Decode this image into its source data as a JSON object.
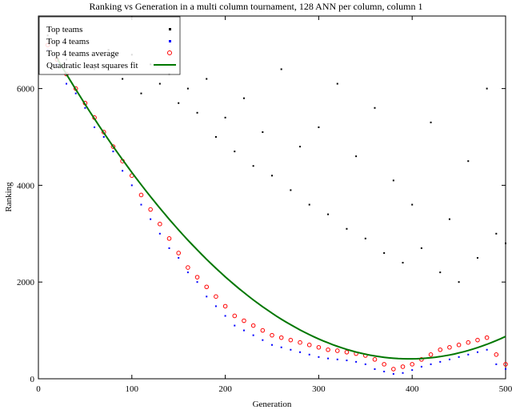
{
  "chart_data": {
    "type": "scatter",
    "title": "Ranking vs Generation in a multi column tournament, 128 ANN per column, column 1",
    "xlabel": "Generation",
    "ylabel": "Ranking",
    "xlim": [
      0,
      500
    ],
    "ylim": [
      0,
      7500
    ],
    "xticks": [
      0,
      100,
      200,
      300,
      400,
      500
    ],
    "yticks": [
      0,
      2000,
      4000,
      6000
    ],
    "grid": false,
    "legend_position": "top-left",
    "series": [
      {
        "name": "Top teams",
        "marker": "dot",
        "color": "#000000",
        "points": [
          [
            10,
            7100
          ],
          [
            20,
            6900
          ],
          [
            30,
            6600
          ],
          [
            45,
            7200
          ],
          [
            60,
            6400
          ],
          [
            75,
            6800
          ],
          [
            90,
            6200
          ],
          [
            100,
            6700
          ],
          [
            110,
            5900
          ],
          [
            120,
            6500
          ],
          [
            130,
            6100
          ],
          [
            140,
            6300
          ],
          [
            150,
            5700
          ],
          [
            160,
            6000
          ],
          [
            170,
            5500
          ],
          [
            180,
            6200
          ],
          [
            190,
            5000
          ],
          [
            200,
            5400
          ],
          [
            210,
            4700
          ],
          [
            220,
            5800
          ],
          [
            230,
            4400
          ],
          [
            240,
            5100
          ],
          [
            250,
            4200
          ],
          [
            260,
            6400
          ],
          [
            270,
            3900
          ],
          [
            280,
            4800
          ],
          [
            290,
            3600
          ],
          [
            300,
            5200
          ],
          [
            310,
            3400
          ],
          [
            320,
            6100
          ],
          [
            330,
            3100
          ],
          [
            340,
            4600
          ],
          [
            350,
            2900
          ],
          [
            360,
            5600
          ],
          [
            370,
            2600
          ],
          [
            380,
            4100
          ],
          [
            390,
            2400
          ],
          [
            400,
            3600
          ],
          [
            410,
            2700
          ],
          [
            420,
            5300
          ],
          [
            430,
            2200
          ],
          [
            440,
            3300
          ],
          [
            450,
            2000
          ],
          [
            460,
            4500
          ],
          [
            470,
            2500
          ],
          [
            480,
            6000
          ],
          [
            490,
            3000
          ],
          [
            500,
            2800
          ]
        ]
      },
      {
        "name": "Top 4 teams",
        "marker": "dot",
        "color": "#0000ff",
        "points": [
          [
            10,
            6800
          ],
          [
            20,
            6500
          ],
          [
            30,
            6100
          ],
          [
            40,
            5900
          ],
          [
            50,
            5600
          ],
          [
            60,
            5200
          ],
          [
            70,
            5000
          ],
          [
            80,
            4700
          ],
          [
            90,
            4300
          ],
          [
            100,
            4000
          ],
          [
            110,
            3600
          ],
          [
            120,
            3300
          ],
          [
            130,
            3000
          ],
          [
            140,
            2700
          ],
          [
            150,
            2500
          ],
          [
            160,
            2200
          ],
          [
            170,
            2000
          ],
          [
            180,
            1700
          ],
          [
            190,
            1500
          ],
          [
            200,
            1300
          ],
          [
            210,
            1100
          ],
          [
            220,
            1000
          ],
          [
            230,
            900
          ],
          [
            240,
            800
          ],
          [
            250,
            700
          ],
          [
            260,
            650
          ],
          [
            270,
            600
          ],
          [
            280,
            550
          ],
          [
            290,
            500
          ],
          [
            300,
            450
          ],
          [
            310,
            420
          ],
          [
            320,
            400
          ],
          [
            330,
            380
          ],
          [
            340,
            350
          ],
          [
            350,
            300
          ],
          [
            360,
            200
          ],
          [
            370,
            150
          ],
          [
            380,
            100
          ],
          [
            390,
            120
          ],
          [
            400,
            180
          ],
          [
            410,
            250
          ],
          [
            420,
            300
          ],
          [
            430,
            350
          ],
          [
            440,
            400
          ],
          [
            450,
            450
          ],
          [
            460,
            500
          ],
          [
            470,
            550
          ],
          [
            480,
            600
          ],
          [
            490,
            300
          ],
          [
            500,
            200
          ]
        ]
      },
      {
        "name": "Top 4 teams average",
        "marker": "circle",
        "color": "#ff0000",
        "points": [
          [
            10,
            6900
          ],
          [
            20,
            6600
          ],
          [
            30,
            6300
          ],
          [
            40,
            6000
          ],
          [
            50,
            5700
          ],
          [
            60,
            5400
          ],
          [
            70,
            5100
          ],
          [
            80,
            4800
          ],
          [
            90,
            4500
          ],
          [
            100,
            4200
          ],
          [
            110,
            3800
          ],
          [
            120,
            3500
          ],
          [
            130,
            3200
          ],
          [
            140,
            2900
          ],
          [
            150,
            2600
          ],
          [
            160,
            2300
          ],
          [
            170,
            2100
          ],
          [
            180,
            1900
          ],
          [
            190,
            1700
          ],
          [
            200,
            1500
          ],
          [
            210,
            1300
          ],
          [
            220,
            1200
          ],
          [
            230,
            1100
          ],
          [
            240,
            1000
          ],
          [
            250,
            900
          ],
          [
            260,
            850
          ],
          [
            270,
            800
          ],
          [
            280,
            750
          ],
          [
            290,
            700
          ],
          [
            300,
            650
          ],
          [
            310,
            600
          ],
          [
            320,
            580
          ],
          [
            330,
            550
          ],
          [
            340,
            520
          ],
          [
            350,
            480
          ],
          [
            360,
            400
          ],
          [
            370,
            300
          ],
          [
            380,
            200
          ],
          [
            390,
            250
          ],
          [
            400,
            300
          ],
          [
            410,
            400
          ],
          [
            420,
            500
          ],
          [
            430,
            600
          ],
          [
            440,
            650
          ],
          [
            450,
            700
          ],
          [
            460,
            750
          ],
          [
            470,
            800
          ],
          [
            480,
            850
          ],
          [
            490,
            500
          ],
          [
            500,
            300
          ]
        ]
      },
      {
        "name": "Quadratic least squares fit",
        "marker": "line",
        "color": "#007700",
        "coefficients": [
          7300,
          -34.7,
          0.0437
        ]
      }
    ]
  }
}
